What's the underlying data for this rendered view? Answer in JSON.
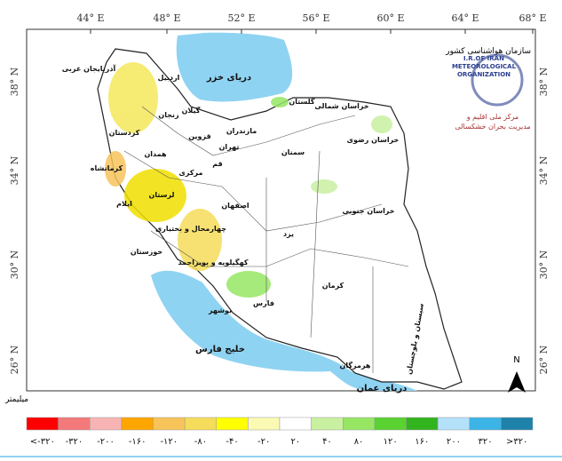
{
  "map": {
    "lon_ticks": [
      "44° E",
      "48° E",
      "52° E",
      "56° E",
      "60° E",
      "64° E",
      "68° E"
    ],
    "lat_ticks": [
      "38° N",
      "34° N",
      "30° N",
      "26° N"
    ],
    "seas": [
      "دریای خزر",
      "خلیج فارس",
      "دریای عمان"
    ],
    "provinces": [
      "آذربایجان غربی",
      "اردبیل",
      "گیلان",
      "مازندران",
      "گلستان",
      "خراسان شمالی",
      "خراسان رضوی",
      "سمنان",
      "تهران",
      "قزوین",
      "زنجان",
      "کردستان",
      "کرمانشاه",
      "همدان",
      "مرکزی",
      "قم",
      "لرستان",
      "ایلام",
      "خوزستان",
      "چهارمحال و بختیاری",
      "کهگیلویه و بویراحمد",
      "بوشهر",
      "فارس",
      "اصفهان",
      "یزد",
      "خراسان جنوبی",
      "کرمان",
      "هرمزگان",
      "سیستان و بلوچستان"
    ],
    "logo": [
      "سازمان هواشناسی کشور",
      "I.R.OF IRAN",
      "METEOROLOGICAL",
      "ORGANIZATION",
      "مرکز ملی اقلیم و",
      "مدیریت بحران خشکسالی"
    ],
    "north": "N",
    "unit": "میلیمتر",
    "legend": {
      "colors": [
        "#ff0000",
        "#f4797a",
        "#f8b4b4",
        "#ffa500",
        "#f7c45a",
        "#f5dc5a",
        "#ffff00",
        "#fafab4",
        "#ffffff",
        "#c8f0a0",
        "#96e664",
        "#5ad232",
        "#32b41e",
        "#b4e1fa",
        "#3cb4e6",
        "#1e82aa"
      ],
      "labels": [
        "<-۳۲۰",
        "-۳۲۰",
        "-۲۰۰",
        "-۱۶۰",
        "-۱۲۰",
        "-۸۰",
        "-۴۰",
        "-۲۰",
        "۲۰",
        "۴۰",
        "۸۰",
        "۱۲۰",
        "۱۶۰",
        "۲۰۰",
        "۳۲۰",
        ">۳۲۰"
      ]
    }
  }
}
